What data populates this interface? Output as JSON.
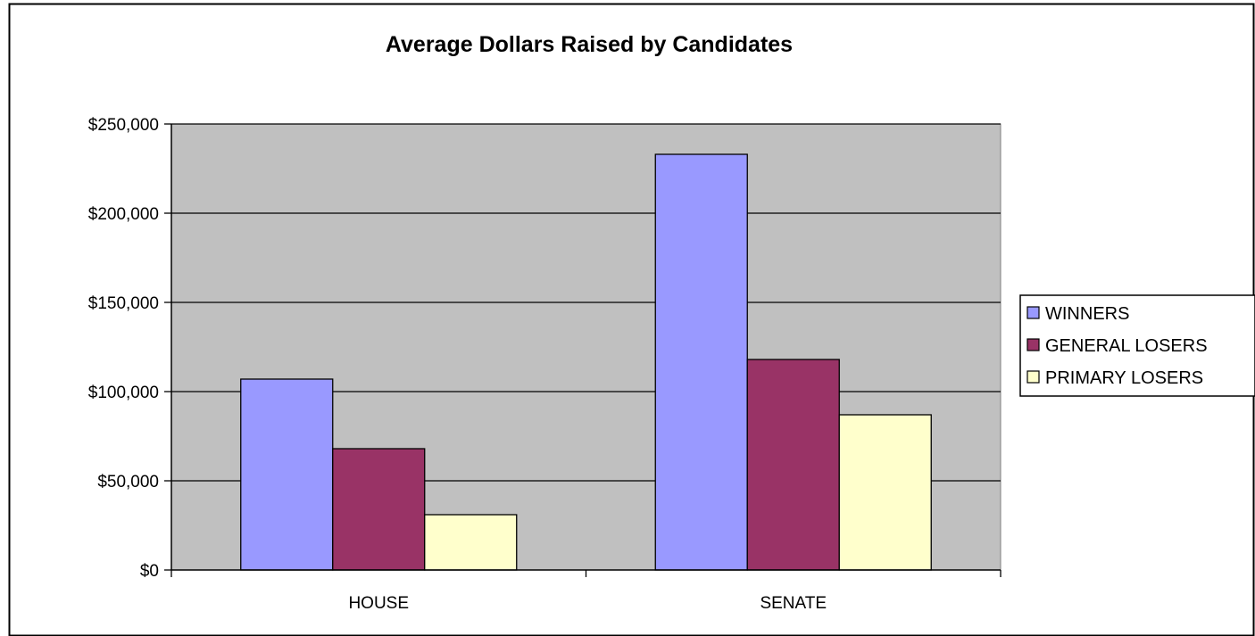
{
  "chart_data": {
    "type": "bar",
    "title": "Average Dollars Raised by Candidates",
    "xlabel": "",
    "ylabel": "",
    "categories": [
      "HOUSE",
      "SENATE"
    ],
    "series": [
      {
        "name": "WINNERS",
        "values": [
          107000,
          233000
        ],
        "color": "#9999ff"
      },
      {
        "name": "GENERAL LOSERS",
        "values": [
          68000,
          118000
        ],
        "color": "#993366"
      },
      {
        "name": "PRIMARY LOSERS",
        "values": [
          31000,
          87000
        ],
        "color": "#ffffcc"
      }
    ],
    "ylim": [
      0,
      250000
    ],
    "yticks": [
      0,
      50000,
      100000,
      150000,
      200000,
      250000
    ],
    "ytick_labels": [
      "$0",
      "$50,000",
      "$100,000",
      "$150,000",
      "$200,000",
      "$250,000"
    ],
    "grid": true,
    "legend_position": "right",
    "plot_background": "#c0c0c0"
  }
}
